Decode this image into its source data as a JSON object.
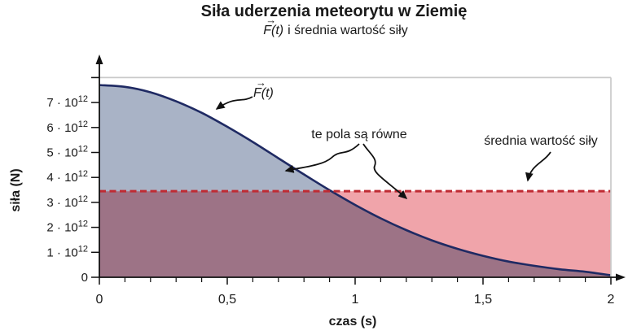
{
  "chart_data": {
    "type": "area",
    "title": "Siła uderzenia meteorytu w Ziemię",
    "subtitle": {
      "math": "F(t)",
      "rest": "i średnia wartość siły"
    },
    "xlabel": "czas (s)",
    "ylabel": "siła (N)",
    "xlim": [
      0,
      2
    ],
    "ylim": [
      0,
      8000000000000.0
    ],
    "grid": false,
    "legend": false,
    "x_ticks": [
      {
        "value": 0,
        "label": "0"
      },
      {
        "value": 0.5,
        "label": "0,5"
      },
      {
        "value": 1,
        "label": "1"
      },
      {
        "value": 1.5,
        "label": "1,5"
      },
      {
        "value": 2,
        "label": "2"
      }
    ],
    "x_minor_tick_step": 0.1,
    "y_ticks": [
      {
        "value": 0,
        "mantissa": "0",
        "exp": ""
      },
      {
        "value": 1,
        "mantissa": "1 · 10",
        "exp": "12"
      },
      {
        "value": 2,
        "mantissa": "2 · 10",
        "exp": "12"
      },
      {
        "value": 3,
        "mantissa": "3 · 10",
        "exp": "12"
      },
      {
        "value": 4,
        "mantissa": "4 · 10",
        "exp": "12"
      },
      {
        "value": 5,
        "mantissa": "5 · 10",
        "exp": "12"
      },
      {
        "value": 6,
        "mantissa": "6 · 10",
        "exp": "12"
      },
      {
        "value": 7,
        "mantissa": "7 · 10",
        "exp": "12"
      },
      {
        "value": 8,
        "mantissa": "",
        "exp": ""
      }
    ],
    "series": [
      {
        "name": "F(t)",
        "t": [
          0,
          0.1,
          0.2,
          0.3,
          0.4,
          0.5,
          0.6,
          0.7,
          0.8,
          0.9,
          1.0,
          1.1,
          1.2,
          1.3,
          1.4,
          1.5,
          1.6,
          1.7,
          1.8,
          1.9,
          2.0
        ],
        "F_1e12": [
          7.7,
          7.63,
          7.41,
          7.05,
          6.59,
          6.03,
          5.42,
          4.77,
          4.12,
          3.49,
          2.9,
          2.36,
          1.89,
          1.48,
          1.14,
          0.86,
          0.63,
          0.46,
          0.32,
          0.22,
          0.08
        ]
      }
    ],
    "average_value_1e12": 3.45,
    "annotations": {
      "curve_label": "F(t)",
      "vector_arrow": "→",
      "areas_equal": "te pola są równe",
      "average_label": "średnia wartość siły"
    }
  },
  "colors": {
    "curve": "#1f2a63",
    "fill_above_avg": "#a9b3c6",
    "fill_below_avg": "#f0a4aa",
    "fill_overlap": "#9d7386",
    "avg_dashed": "#bf2b33",
    "frame": "#c9c9c9",
    "axis": "#111111",
    "text": "#1a1a1a"
  }
}
